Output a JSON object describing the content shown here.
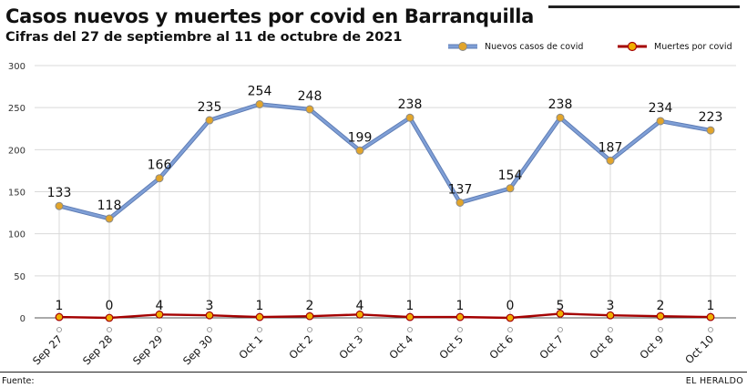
{
  "header": {
    "title": "Casos nuevos y muertes por covid en Barranquilla",
    "subtitle": "Cifras del 27 de septiembre al 11 de octubre de 2021"
  },
  "footer": {
    "source_label": "Fuente:",
    "brand": "EL HERALDO"
  },
  "colors": {
    "cases_line": "#7f9fd6",
    "cases_line_outline": "#5d7bb3",
    "cases_marker": "#e2a52b",
    "deaths_line": "#a40000",
    "deaths_marker": "#f0b000",
    "grid": "#d9d9d9",
    "axis": "#555555"
  },
  "chart_data": {
    "type": "line",
    "categories": [
      "Sep 27",
      "Sep 28",
      "Sep 29",
      "Sep 30",
      "Oct 1",
      "Oct 2",
      "Oct 3",
      "Oct 4",
      "Oct 5",
      "Oct 6",
      "Oct 7",
      "Oct 8",
      "Oct 9",
      "Oct 10"
    ],
    "series": [
      {
        "name": "Nuevos casos de covid",
        "values": [
          133,
          118,
          166,
          235,
          254,
          248,
          199,
          238,
          137,
          154,
          238,
          187,
          234,
          223
        ]
      },
      {
        "name": "Muertes por covid",
        "values": [
          1,
          0,
          4,
          3,
          1,
          2,
          4,
          1,
          1,
          0,
          5,
          3,
          2,
          1
        ]
      }
    ],
    "yticks": [
      0,
      50,
      100,
      150,
      200,
      250,
      300
    ],
    "ylim": [
      0,
      300
    ],
    "grid": true,
    "legend_position": "top-right",
    "data_labels": true
  }
}
